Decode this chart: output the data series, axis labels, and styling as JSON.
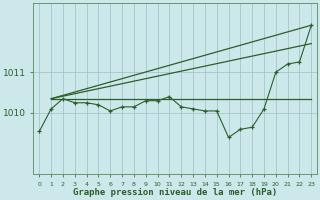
{
  "bg_color": "#cce8ea",
  "grid_color": "#9fbfc2",
  "line_color": "#2a5f2a",
  "xlabel": "Graphe pression niveau de la mer (hPa)",
  "yticks": [
    1010,
    1011
  ],
  "ylim": [
    1008.5,
    1012.7
  ],
  "xlim": [
    -0.5,
    23.5
  ],
  "x_all": [
    0,
    1,
    2,
    3,
    4,
    5,
    6,
    7,
    8,
    9,
    10,
    11,
    12,
    13,
    14,
    15,
    16,
    17,
    18,
    19,
    20,
    21,
    22,
    23
  ],
  "y_main": [
    1009.55,
    1010.1,
    1010.35,
    1010.25,
    1010.25,
    1010.2,
    1010.05,
    1010.15,
    1010.15,
    1010.3,
    1010.3,
    1010.4,
    1010.15,
    1010.1,
    1010.05,
    1010.05,
    1009.4,
    1009.6,
    1009.65,
    1010.1,
    1011.0,
    1011.2,
    1011.25,
    1012.15
  ],
  "upper_line1_x": [
    1,
    23
  ],
  "upper_line1_y": [
    1010.35,
    1012.15
  ],
  "upper_line2_x": [
    1,
    23
  ],
  "upper_line2_y": [
    1010.35,
    1011.7
  ],
  "flat_line_x": [
    1,
    16,
    23
  ],
  "flat_line_y": [
    1010.35,
    1010.35,
    1010.35
  ],
  "tick_fontsize": 4.5,
  "ytick_fontsize": 6.5,
  "xlabel_fontsize": 6.5
}
